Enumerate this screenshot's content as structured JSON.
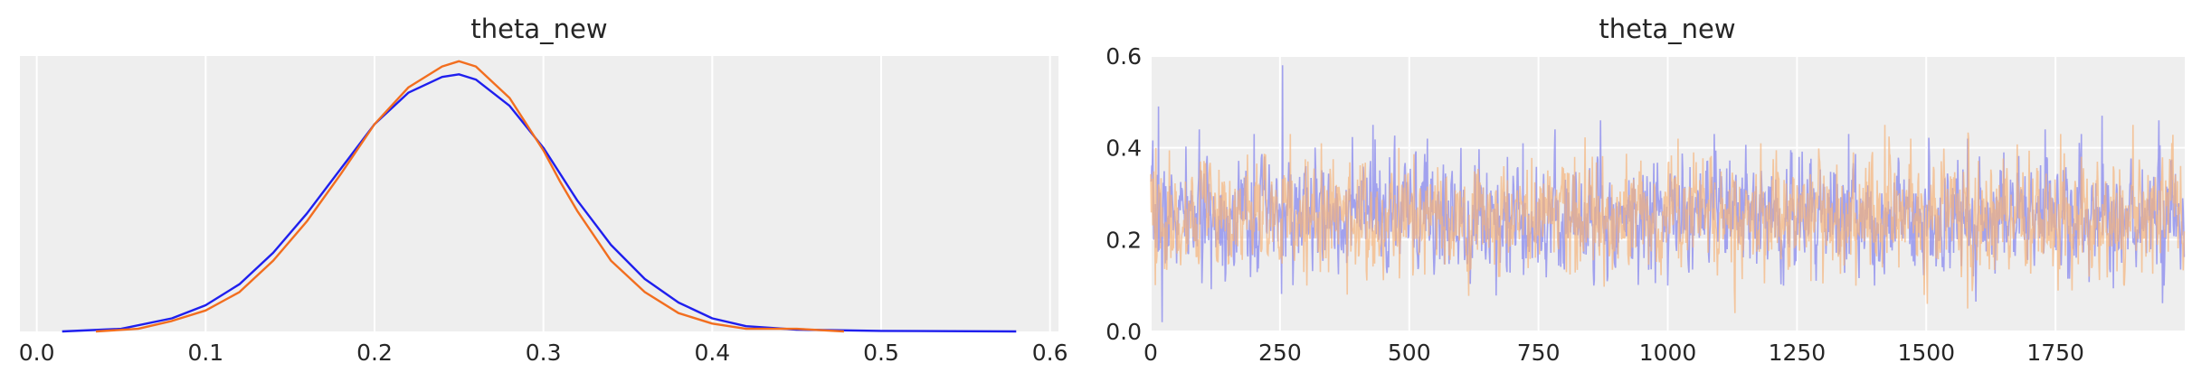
{
  "chart_data": [
    {
      "type": "line",
      "subtype": "kde",
      "title": "theta_new",
      "xlim": [
        -0.01,
        0.605
      ],
      "ylim": [
        0,
        1.05
      ],
      "xticks": [
        "0.0",
        "0.1",
        "0.2",
        "0.3",
        "0.4",
        "0.5",
        "0.6"
      ],
      "yticks": [],
      "grid": true,
      "series": [
        {
          "color": "#1f1fee",
          "x": [
            0.015,
            0.05,
            0.08,
            0.1,
            0.12,
            0.14,
            0.16,
            0.18,
            0.2,
            0.22,
            0.24,
            0.25,
            0.26,
            0.28,
            0.3,
            0.32,
            0.34,
            0.36,
            0.38,
            0.4,
            0.42,
            0.45,
            0.5,
            0.58
          ],
          "y": [
            0.0,
            0.01,
            0.05,
            0.1,
            0.18,
            0.3,
            0.45,
            0.62,
            0.79,
            0.91,
            0.97,
            0.98,
            0.96,
            0.86,
            0.7,
            0.5,
            0.33,
            0.2,
            0.11,
            0.05,
            0.02,
            0.007,
            0.002,
            0.0
          ]
        },
        {
          "color": "#f26e1f",
          "x": [
            0.035,
            0.06,
            0.08,
            0.1,
            0.12,
            0.14,
            0.16,
            0.18,
            0.2,
            0.22,
            0.24,
            0.25,
            0.26,
            0.28,
            0.3,
            0.31,
            0.32,
            0.34,
            0.36,
            0.38,
            0.4,
            0.42,
            0.45,
            0.478
          ],
          "y": [
            0.0,
            0.01,
            0.04,
            0.08,
            0.15,
            0.27,
            0.42,
            0.6,
            0.79,
            0.93,
            1.01,
            1.03,
            1.01,
            0.89,
            0.69,
            0.57,
            0.46,
            0.27,
            0.15,
            0.07,
            0.03,
            0.01,
            0.01,
            0.0
          ]
        }
      ]
    },
    {
      "type": "line",
      "subtype": "trace",
      "title": "theta_new",
      "xlim": [
        0,
        2000
      ],
      "ylim": [
        0,
        0.6
      ],
      "xticks": [
        "0",
        "250",
        "500",
        "750",
        "1000",
        "1250",
        "1500",
        "1750"
      ],
      "yticks": [
        "0.0",
        "0.2",
        "0.4",
        "0.6"
      ],
      "grid": true,
      "n_draws": 2000,
      "series": [
        {
          "color": "#8080ee",
          "opacity": 0.7,
          "mean": 0.25,
          "sd": 0.055,
          "seed": 7,
          "spikes": [
            [
              5,
              0.27
            ],
            [
              15,
              0.49
            ],
            [
              22,
              0.02
            ],
            [
              200,
              0.43
            ],
            [
              255,
              0.58
            ],
            [
              300,
              0.36
            ],
            [
              430,
              0.45
            ],
            [
              535,
              0.42
            ],
            [
              600,
              0.4
            ],
            [
              690,
              0.38
            ],
            [
              720,
              0.41
            ],
            [
              870,
              0.46
            ],
            [
              1000,
              0.44
            ],
            [
              1090,
              0.43
            ],
            [
              1240,
              0.39
            ],
            [
              1350,
              0.43
            ],
            [
              1580,
              0.42
            ],
            [
              1650,
              0.39
            ],
            [
              1730,
              0.44
            ],
            [
              1800,
              0.43
            ],
            [
              1840,
              0.47
            ],
            [
              1950,
              0.46
            ],
            [
              1960,
              0.1
            ],
            [
              1400,
              0.1
            ],
            [
              1000,
              0.1
            ]
          ]
        },
        {
          "color": "#f5b47a",
          "opacity": 0.7,
          "mean": 0.25,
          "sd": 0.055,
          "seed": 19,
          "spikes": [
            [
              10,
              0.4
            ],
            [
              270,
              0.43
            ],
            [
              330,
              0.41
            ],
            [
              480,
              0.4
            ],
            [
              820,
              0.38
            ],
            [
              1020,
              0.42
            ],
            [
              1050,
              0.39
            ],
            [
              1130,
              0.04
            ],
            [
              1420,
              0.45
            ],
            [
              1470,
              0.42
            ],
            [
              1580,
              0.05
            ],
            [
              1760,
              0.43
            ],
            [
              1900,
              0.45
            ],
            [
              380,
              0.08
            ],
            [
              1180,
              0.41
            ]
          ]
        }
      ]
    }
  ]
}
